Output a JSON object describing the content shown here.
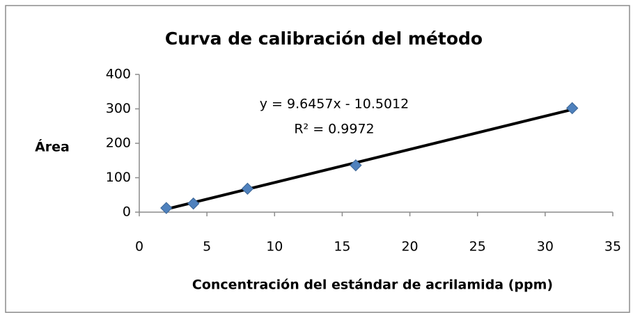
{
  "chart_data": {
    "type": "scatter",
    "title": "Curva de calibración del método",
    "x_label": "Concentración del estándar de acrilamida (ppm)",
    "y_label": "Área",
    "series": [
      {
        "name": "Área",
        "color": "#4f81bd",
        "x": [
          2,
          4,
          8,
          16,
          32
        ],
        "values": [
          12,
          25,
          68,
          136,
          302
        ]
      }
    ],
    "trendline": {
      "equation": "y = 9.6457x - 10.5012",
      "r_squared": "R² = 0.9972",
      "slope": 9.6457,
      "intercept": -10.5012,
      "color": "#000000"
    },
    "xlim": [
      0,
      35
    ],
    "xticks": [
      0,
      5,
      10,
      15,
      20,
      25,
      30,
      35
    ],
    "ylim": [
      0,
      400
    ],
    "yticks": [
      0,
      100,
      200,
      300,
      400
    ],
    "grid": false
  }
}
